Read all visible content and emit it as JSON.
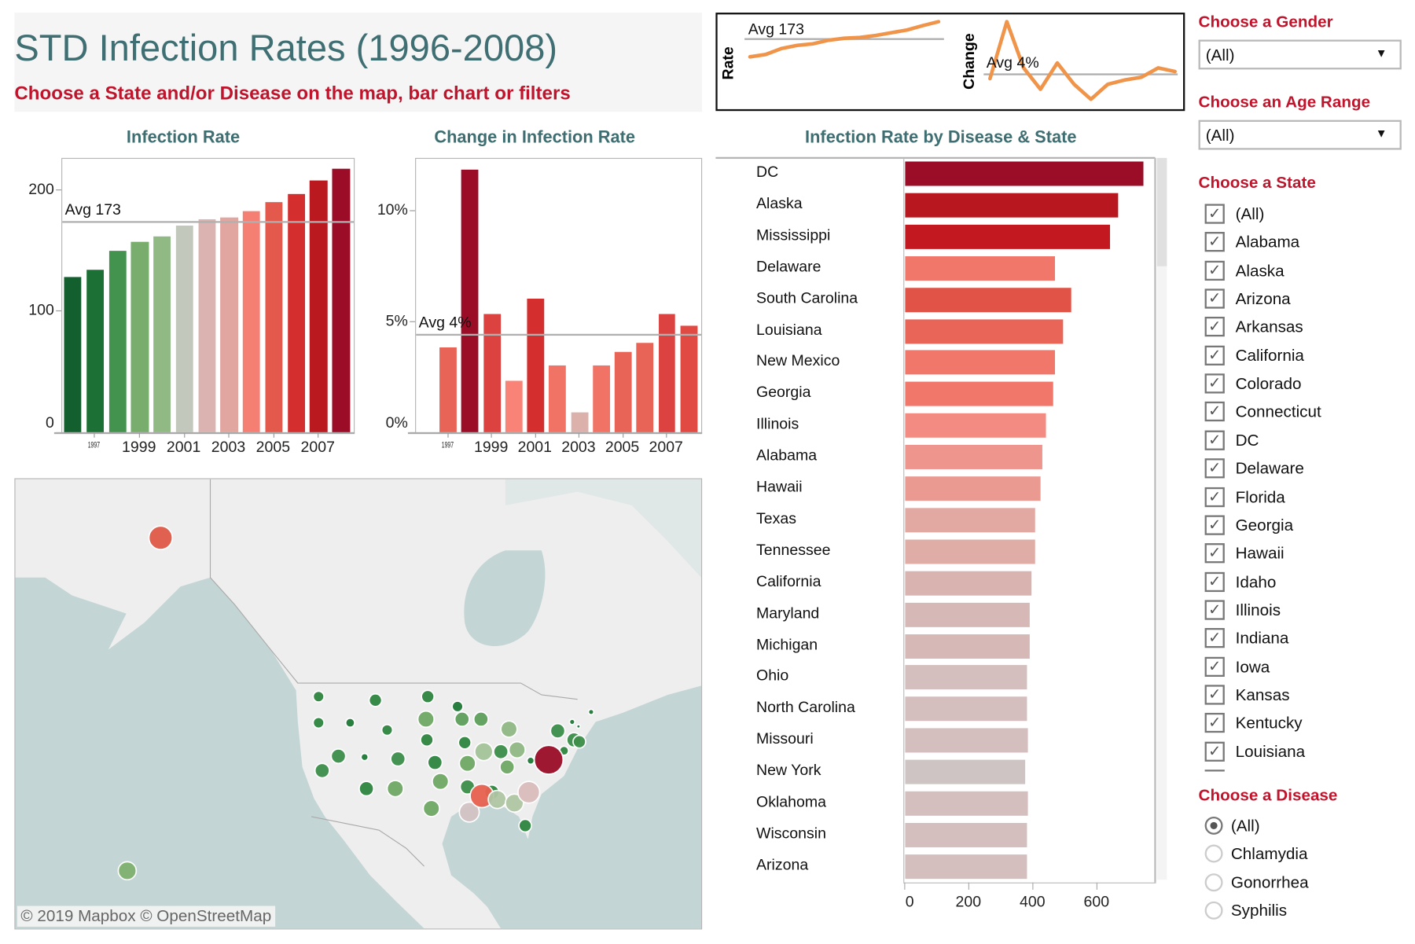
{
  "header": {
    "title": "STD Infection Rates (1996-2008)",
    "subtitle": "Choose a State and/or Disease on the map, bar chart or filters"
  },
  "chart_data": [
    {
      "type": "bar",
      "title": "Infection Rate",
      "categories": [
        "1996",
        "1997",
        "1998",
        "1999",
        "2000",
        "2001",
        "2002",
        "2003",
        "2004",
        "2005",
        "2006",
        "2007",
        "2008"
      ],
      "values": [
        128,
        134,
        149,
        157,
        161,
        170,
        175,
        177,
        182,
        189,
        196,
        207,
        217
      ],
      "colors": [
        "#135f2e",
        "#1d7035",
        "#43934f",
        "#78ad6e",
        "#90b984",
        "#c2c9bc",
        "#dbb3b1",
        "#e2a6a1",
        "#f47f72",
        "#e35a4c",
        "#d42e2e",
        "#bb1920",
        "#9b0d27"
      ],
      "y_ticks": [
        "0",
        "100",
        "200"
      ],
      "y_tick_values": [
        0,
        100,
        200
      ],
      "x_tick_labels": [
        "1997",
        "1999",
        "2001",
        "2003",
        "2005",
        "2007"
      ],
      "ylim": [
        0,
        225
      ],
      "average": 173,
      "average_label": "Avg 173"
    },
    {
      "type": "bar",
      "title": "Change in Infection Rate",
      "categories": [
        "1996",
        "1997",
        "1998",
        "1999",
        "2000",
        "2001",
        "2002",
        "2003",
        "2004",
        "2005",
        "2006",
        "2007",
        "2008"
      ],
      "values": [
        null,
        3.8,
        11.8,
        5.3,
        2.3,
        6.0,
        3.0,
        0.9,
        3.0,
        3.6,
        4.0,
        5.3,
        4.8
      ],
      "colors": [
        null,
        "#e86456",
        "#9b0d27",
        "#dc4340",
        "#fa8378",
        "#d42e2e",
        "#f07366",
        "#dcb1ab",
        "#f07366",
        "#e86456",
        "#e86456",
        "#dc4340",
        "#e04a42"
      ],
      "y_ticks": [
        "0%",
        "5%",
        "10%"
      ],
      "y_tick_values": [
        0,
        5,
        10
      ],
      "x_tick_labels": [
        "1997",
        "1999",
        "2001",
        "2003",
        "2005",
        "2007"
      ],
      "ylim": [
        0,
        12.3
      ],
      "average": 4.4,
      "average_label": "Avg 4%"
    },
    {
      "type": "bar",
      "orientation": "horizontal",
      "title": "Infection Rate by Disease & State",
      "categories": [
        "DC",
        "Alaska",
        "Mississippi",
        "Delaware",
        "South Carolina",
        "Louisiana",
        "New Mexico",
        "Georgia",
        "Illinois",
        "Alabama",
        "Hawaii",
        "Texas",
        "Tennessee",
        "California",
        "Maryland",
        "Michigan",
        "Ohio",
        "North Carolina",
        "Missouri",
        "New York",
        "Oklahoma",
        "Wisconsin",
        "Arizona"
      ],
      "values": [
        744,
        665,
        639,
        468,
        518,
        493,
        468,
        462,
        439,
        428,
        423,
        406,
        406,
        394,
        389,
        389,
        380,
        380,
        383,
        375,
        383,
        380,
        380
      ],
      "colors": [
        "#9b0d27",
        "#b8171f",
        "#c41820",
        "#f0776a",
        "#e05346",
        "#e96558",
        "#f0776a",
        "#f0776a",
        "#f38b82",
        "#ee968e",
        "#eb9a92",
        "#e2a8a2",
        "#e0aca6",
        "#d9b3b0",
        "#d6b8b6",
        "#d6b8b6",
        "#d4bebe",
        "#d4bebe",
        "#d4bebe",
        "#cfc4c4",
        "#d4bebe",
        "#d4bebe",
        "#d4bebe"
      ],
      "x_ticks": [
        "0",
        "200",
        "400",
        "600"
      ],
      "x_tick_values": [
        0,
        200,
        400,
        600
      ],
      "xlim": [
        0,
        785
      ]
    }
  ],
  "sparklines": {
    "rate_label": "Rate",
    "rate_avg_label": "Avg 173",
    "change_label": "Change",
    "change_avg_label": "Avg 4%",
    "line_color": "#f0944a"
  },
  "map": {
    "attribution": "© 2019 Mapbox  © OpenStreetMap",
    "water_color": "#c3d5d4",
    "land_color": "#eeeeee"
  },
  "filters": {
    "gender": {
      "label": "Choose a Gender",
      "value": "(All)"
    },
    "age": {
      "label": "Choose an Age Range",
      "value": "(All)"
    },
    "state": {
      "label": "Choose a State",
      "items": [
        "(All)",
        "Alabama",
        "Alaska",
        "Arizona",
        "Arkansas",
        "California",
        "Colorado",
        "Connecticut",
        "DC",
        "Delaware",
        "Florida",
        "Georgia",
        "Hawaii",
        "Idaho",
        "Illinois",
        "Indiana",
        "Iowa",
        "Kansas",
        "Kentucky",
        "Louisiana"
      ],
      "checked": true
    },
    "disease": {
      "label": "Choose a Disease",
      "items": [
        "(All)",
        "Chlamydia",
        "Gonorrhea",
        "Syphilis"
      ],
      "selected": "(All)"
    }
  },
  "colors": {
    "accent_red": "#c0142c",
    "heading_teal": "#3e6e71"
  }
}
